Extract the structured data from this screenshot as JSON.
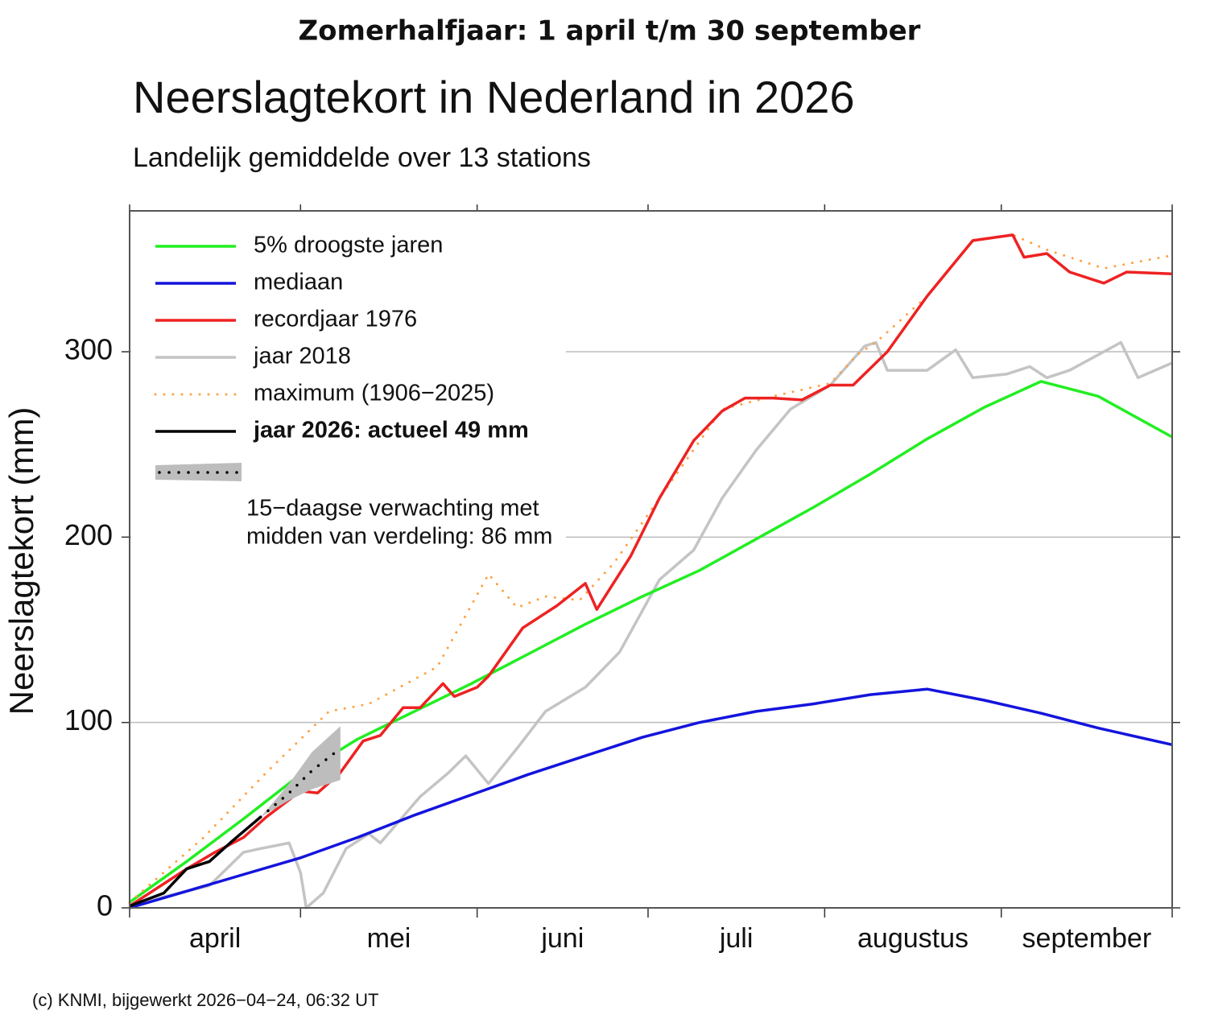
{
  "header": "Zomerhalfjaar: 1 april t/m 30 september",
  "chart_data": {
    "type": "line",
    "title": "Neerslagtekort in Nederland in 2026",
    "subtitle": "Landelijk gemiddelde over 13 stations",
    "ylabel": "Neerslagtekort (mm)",
    "categories": [
      "april",
      "mei",
      "juni",
      "juli",
      "augustus",
      "september"
    ],
    "xticks": [
      0,
      30,
      61,
      91,
      122,
      153,
      183
    ],
    "xlim": [
      0,
      183
    ],
    "ylim": [
      0,
      376
    ],
    "yticks": [
      0,
      100,
      200,
      300
    ],
    "grid": true,
    "legend": "upper-left",
    "series": [
      {
        "name": "5% droogste jaren",
        "color": "#22ee22",
        "style": "solid",
        "x": [
          0,
          10,
          20,
          30,
          40,
          50,
          60,
          70,
          80,
          90,
          100,
          110,
          120,
          130,
          140,
          150,
          160,
          170,
          183
        ],
        "values": [
          3,
          25,
          48,
          72,
          91,
          106,
          121,
          137,
          153,
          168,
          182,
          199,
          216,
          234,
          253,
          270,
          284,
          276,
          254
        ]
      },
      {
        "name": "mediaan",
        "color": "#1414dd",
        "style": "solid",
        "x": [
          0,
          10,
          20,
          30,
          40,
          50,
          60,
          70,
          80,
          90,
          100,
          110,
          120,
          130,
          140,
          150,
          160,
          170,
          183
        ],
        "values": [
          0,
          9,
          18,
          27,
          38,
          50,
          61,
          72,
          82,
          92,
          100,
          106,
          110,
          115,
          118,
          112,
          105,
          97,
          88
        ]
      },
      {
        "name": "recordjaar 1976",
        "color": "#ee2222",
        "style": "solid",
        "x": [
          0,
          10,
          15,
          20,
          24,
          30,
          33,
          37,
          41,
          44,
          48,
          51,
          55,
          57,
          61,
          63,
          69,
          75,
          80,
          82,
          88,
          93,
          99,
          104,
          108,
          113,
          118,
          123,
          127,
          133,
          140,
          148,
          155,
          157,
          161,
          165,
          171,
          175,
          183
        ],
        "values": [
          1,
          21,
          30,
          38,
          49,
          63,
          62,
          73,
          90,
          93,
          108,
          108,
          121,
          114,
          119,
          125,
          151,
          163,
          175,
          161,
          190,
          221,
          252,
          268,
          275,
          275,
          274,
          282,
          282,
          300,
          330,
          360,
          363,
          351,
          353,
          343,
          337,
          343,
          342
        ]
      },
      {
        "name": "jaar 2018",
        "color": "#c4c4c4",
        "style": "solid",
        "x": [
          0,
          6,
          14,
          20,
          23,
          28,
          30,
          31,
          34,
          38,
          42,
          44,
          51,
          56,
          59,
          63,
          68,
          73,
          80,
          86,
          93,
          99,
          104,
          110,
          116,
          123,
          129,
          131,
          133,
          140,
          145,
          148,
          154,
          158,
          161,
          165,
          174,
          177,
          183
        ],
        "values": [
          0,
          6,
          12,
          30,
          32,
          35,
          19,
          0,
          8,
          32,
          40,
          35,
          60,
          73,
          82,
          67,
          86,
          106,
          119,
          138,
          177,
          193,
          221,
          247,
          269,
          282,
          303,
          305,
          290,
          290,
          301,
          286,
          288,
          292,
          286,
          290,
          305,
          286,
          294
        ]
      },
      {
        "name": "maximum (1906−2025)",
        "color": "#ffa040",
        "style": "dotted",
        "x": [
          0,
          13,
          24,
          35,
          42,
          54,
          63,
          68,
          73,
          79,
          85,
          93,
          104,
          113,
          123,
          128,
          131,
          140,
          148,
          155,
          161,
          171,
          183
        ],
        "values": [
          3,
          38,
          73,
          106,
          110,
          130,
          180,
          162,
          168,
          166,
          186,
          221,
          269,
          276,
          283,
          299,
          305,
          330,
          360,
          363,
          355,
          345,
          352
        ]
      },
      {
        "name": "jaar 2026: actueel 49 mm",
        "color": "#000000",
        "style": "solid",
        "weight": "bold",
        "x": [
          0,
          6,
          10,
          14,
          18,
          23
        ],
        "values": [
          1,
          8,
          21,
          25,
          36,
          49
        ]
      },
      {
        "name": [
          "15−daagse verwachting met",
          "midden van verdeling: 86 mm"
        ],
        "color": "#000000",
        "band_color": "#bdbdbd",
        "style": "forecast",
        "x": [
          23,
          28,
          32,
          37
        ],
        "values": [
          49,
          62,
          74,
          86
        ],
        "lower": [
          49,
          58,
          64,
          69
        ],
        "upper": [
          49,
          67,
          84,
          98
        ]
      }
    ],
    "footer": "(c) KNMI, bijgewerkt 2026−04−24, 06:32 UT"
  }
}
